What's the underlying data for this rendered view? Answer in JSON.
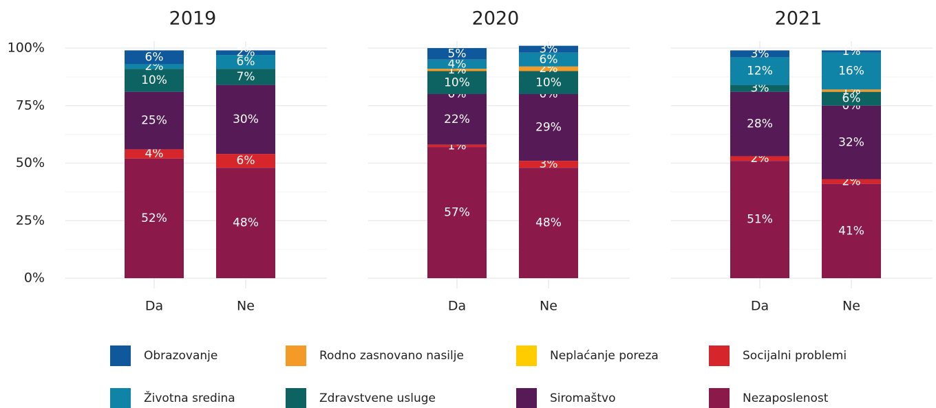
{
  "chart_data": {
    "type": "bar",
    "stacked": true,
    "categories": [
      "Da",
      "Ne"
    ],
    "ylim": [
      0,
      100
    ],
    "yticks": [
      {
        "value": 0,
        "label": "0%"
      },
      {
        "value": 25,
        "label": "25%"
      },
      {
        "value": 50,
        "label": "50%"
      },
      {
        "value": 75,
        "label": "75%"
      },
      {
        "value": 100,
        "label": "100%"
      }
    ],
    "grid": true,
    "series": [
      {
        "name": "Nezaposlenost",
        "color": "#8b1a4a"
      },
      {
        "name": "Socijalni problemi",
        "color": "#d7262b"
      },
      {
        "name": "Siromaštvo",
        "color": "#561b57"
      },
      {
        "name": "Neplaćanje poreza",
        "color": "#ffcc00"
      },
      {
        "name": "Zdravstvene usluge",
        "color": "#0c6361"
      },
      {
        "name": "Rodno zasnovano nasilje",
        "color": "#f39a27"
      },
      {
        "name": "Životna sredina",
        "color": "#0f84a7"
      },
      {
        "name": "Obrazovanje",
        "color": "#0f589c"
      }
    ],
    "panels": [
      {
        "title": "2019",
        "series": [
          {
            "values": [
              52,
              48
            ],
            "value_labels": [
              "52%",
              "48%"
            ]
          },
          {
            "values": [
              4,
              6
            ],
            "value_labels": [
              "4%",
              "6%"
            ]
          },
          {
            "values": [
              25,
              30
            ],
            "value_labels": [
              "25%",
              "30%"
            ]
          },
          {
            "values": [
              null,
              null
            ],
            "value_labels": [
              null,
              null
            ]
          },
          {
            "values": [
              10,
              7
            ],
            "value_labels": [
              "10%",
              "7%"
            ]
          },
          {
            "values": [
              null,
              null
            ],
            "value_labels": [
              null,
              null
            ]
          },
          {
            "values": [
              2,
              6
            ],
            "value_labels": [
              "2%",
              "6%"
            ]
          },
          {
            "values": [
              6,
              2
            ],
            "value_labels": [
              "6%",
              "2%"
            ]
          }
        ]
      },
      {
        "title": "2020",
        "series": [
          {
            "values": [
              57,
              48
            ],
            "value_labels": [
              "57%",
              "48%"
            ]
          },
          {
            "values": [
              1,
              3
            ],
            "value_labels": [
              "1%",
              "3%"
            ]
          },
          {
            "values": [
              22,
              29
            ],
            "value_labels": [
              "22%",
              "29%"
            ]
          },
          {
            "values": [
              0,
              0
            ],
            "value_labels": [
              "0%",
              "0%"
            ]
          },
          {
            "values": [
              10,
              10
            ],
            "value_labels": [
              "10%",
              "10%"
            ]
          },
          {
            "values": [
              1,
              2
            ],
            "value_labels": [
              "1%",
              "2%"
            ]
          },
          {
            "values": [
              4,
              6
            ],
            "value_labels": [
              "4%",
              "6%"
            ]
          },
          {
            "values": [
              5,
              3
            ],
            "value_labels": [
              "5%",
              "3%"
            ]
          }
        ]
      },
      {
        "title": "2021",
        "series": [
          {
            "values": [
              51,
              41
            ],
            "value_labels": [
              "51%",
              "41%"
            ]
          },
          {
            "values": [
              2,
              2
            ],
            "value_labels": [
              "2%",
              "2%"
            ]
          },
          {
            "values": [
              28,
              32
            ],
            "value_labels": [
              "28%",
              "32%"
            ]
          },
          {
            "values": [
              null,
              0
            ],
            "value_labels": [
              null,
              "0%"
            ]
          },
          {
            "values": [
              3,
              6
            ],
            "value_labels": [
              "3%",
              "6%"
            ]
          },
          {
            "values": [
              null,
              1
            ],
            "value_labels": [
              null,
              "1%"
            ]
          },
          {
            "values": [
              12,
              16
            ],
            "value_labels": [
              "12%",
              "16%"
            ]
          },
          {
            "values": [
              3,
              1
            ],
            "value_labels": [
              "3%",
              "1%"
            ]
          }
        ]
      }
    ]
  }
}
